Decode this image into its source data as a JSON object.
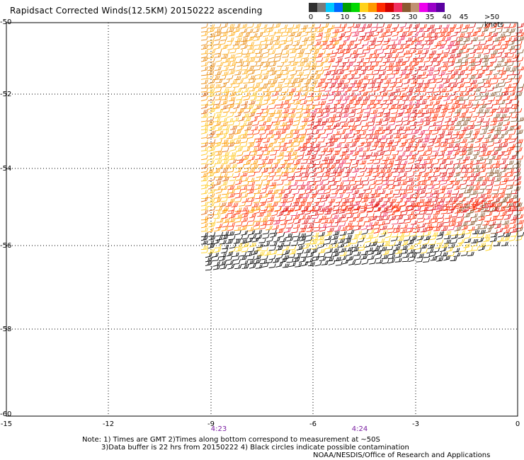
{
  "title": "Rapidsact Corrected Winds(12.5KM) 20150222 ascending",
  "legend": {
    "labels": [
      "0",
      "5",
      "10",
      "15",
      "20",
      "25",
      "30",
      "35",
      "40",
      "45",
      ">50 knots"
    ],
    "colors": [
      "#303030",
      "#7a7a7a",
      "#00c8ff",
      "#0066ff",
      "#00a000",
      "#00d800",
      "#ffd21a",
      "#ff9900",
      "#ff2a00",
      "#d00000",
      "#f03060",
      "#8a5a30",
      "#c09070",
      "#ee00ee",
      "#9a00c8",
      "#5a00a0"
    ]
  },
  "axes": {
    "y_labels": [
      "-50",
      "-52",
      "-54",
      "-56",
      "-58",
      "-60"
    ],
    "x_labels": [
      "-15",
      "-12",
      "-9",
      "-6",
      "-3",
      "0"
    ],
    "time_labels": [
      "4:23",
      "4:24"
    ]
  },
  "notes": {
    "line1": "Note: 1) Times are GMT 2)Times along bottom correspond to measurement at ~50S",
    "line2": "3)Data buffer is 22 hrs from 20150222 4) Black circles indicate possible contamination",
    "credit": "NOAA/NESDIS/Office of Research and Applications"
  }
}
